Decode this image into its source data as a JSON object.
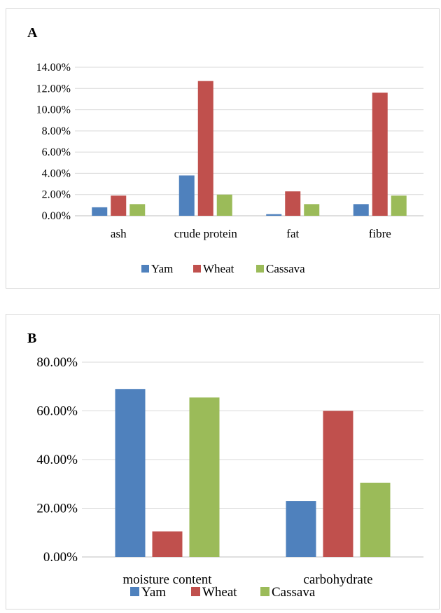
{
  "chart_data": [
    {
      "type": "bar",
      "panel_label": "A",
      "categories": [
        "ash",
        "crude protein",
        "fat",
        "fibre"
      ],
      "series": [
        {
          "name": "Yam",
          "values": [
            0.8,
            3.8,
            0.15,
            1.1
          ],
          "color": "#4f81bd"
        },
        {
          "name": "Wheat",
          "values": [
            1.9,
            12.7,
            2.3,
            11.6
          ],
          "color": "#c0504d"
        },
        {
          "name": "Cassava",
          "values": [
            1.1,
            2.0,
            1.1,
            1.9
          ],
          "color": "#9bbb59"
        }
      ],
      "ylim": [
        0,
        14
      ],
      "y_ticks": [
        "0.00%",
        "2.00%",
        "4.00%",
        "6.00%",
        "8.00%",
        "10.00%",
        "12.00%",
        "14.00%"
      ],
      "grid": true,
      "legend_position": "bottom"
    },
    {
      "type": "bar",
      "panel_label": "B",
      "categories": [
        "moisture content",
        "carbohydrate"
      ],
      "series": [
        {
          "name": "Yam",
          "values": [
            69,
            23
          ],
          "color": "#4f81bd"
        },
        {
          "name": "Wheat",
          "values": [
            10.5,
            60
          ],
          "color": "#c0504d"
        },
        {
          "name": "Cassava",
          "values": [
            65.5,
            30.5
          ],
          "color": "#9bbb59"
        }
      ],
      "ylim": [
        0,
        80
      ],
      "y_ticks": [
        "0.00%",
        "20.00%",
        "40.00%",
        "60.00%",
        "80.00%"
      ],
      "grid": true,
      "legend_position": "bottom"
    }
  ]
}
